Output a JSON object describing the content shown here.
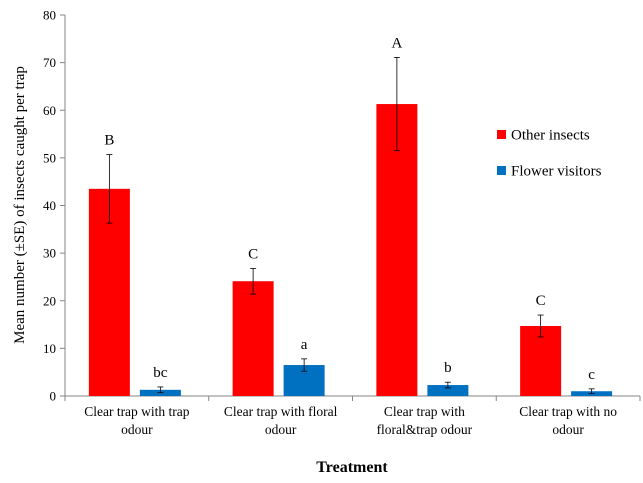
{
  "colors": {
    "other_insects": "#ff0000",
    "flower_visitors": "#0070c0"
  },
  "chart_data": {
    "type": "bar",
    "title": "",
    "xlabel": "Treatment",
    "ylabel": "Mean number (±SE) of insects caught per trap",
    "ylim": [
      0,
      80
    ],
    "yticks": [
      0,
      10,
      20,
      30,
      40,
      50,
      60,
      70,
      80
    ],
    "grid": false,
    "legend_position": "right",
    "categories": [
      [
        "Clear trap with trap",
        "odour"
      ],
      [
        "Clear trap with floral",
        "odour"
      ],
      [
        "Clear trap with",
        "floral&trap odour"
      ],
      [
        "Clear trap with no",
        "odour"
      ]
    ],
    "series": [
      {
        "name": "Other insects",
        "color": "#ff0000",
        "values": [
          43.5,
          24.1,
          61.3,
          14.7
        ],
        "errors": [
          7.2,
          2.7,
          9.8,
          2.3
        ],
        "significance": [
          "B",
          "C",
          "A",
          "C"
        ]
      },
      {
        "name": "Flower visitors",
        "color": "#0070c0",
        "values": [
          1.3,
          6.5,
          2.3,
          1.0
        ],
        "errors": [
          0.6,
          1.3,
          0.6,
          0.5
        ],
        "significance": [
          "bc",
          "a",
          "b",
          "c"
        ]
      }
    ]
  }
}
